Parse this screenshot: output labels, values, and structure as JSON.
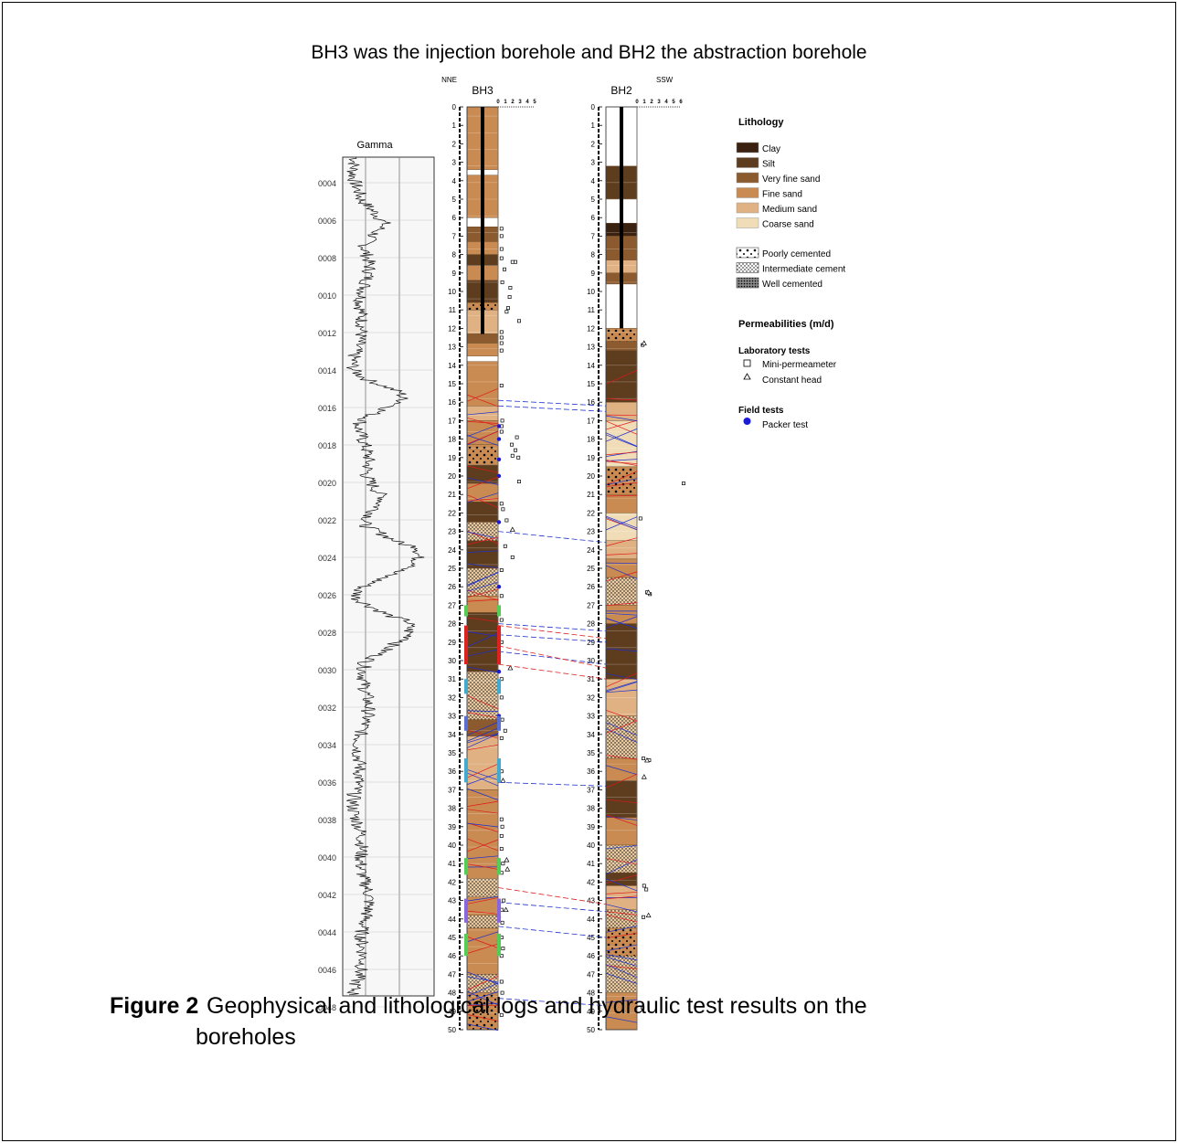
{
  "title": "BH3 was the injection borehole and BH2 the abstraction borehole",
  "caption": {
    "label": "Figure 2",
    "line1": "Geophysical and lithological logs and hydraulic test results on the",
    "line2": "boreholes"
  },
  "gamma": {
    "title": "Gamma",
    "depth_labels": [
      "0004",
      "0006",
      "0008",
      "0010",
      "0012",
      "0014",
      "0016",
      "0018",
      "0020",
      "0022",
      "0024",
      "0026",
      "0028",
      "0030",
      "0032",
      "0034",
      "0036",
      "0038",
      "0040",
      "0042",
      "0044",
      "0046",
      "0048"
    ]
  },
  "bh3": {
    "name": "BH3",
    "direction": "NNE",
    "scale_labels": [
      "0",
      "1",
      "2",
      "3",
      "4",
      "5"
    ],
    "layers": [
      [
        0,
        3.4,
        "fine"
      ],
      [
        3.4,
        3.7,
        "white"
      ],
      [
        3.7,
        6,
        "fine"
      ],
      [
        6,
        6.5,
        "white"
      ],
      [
        6.5,
        7.3,
        "vf"
      ],
      [
        7.3,
        8.0,
        "fine"
      ],
      [
        8.0,
        8.6,
        "silt"
      ],
      [
        8.6,
        9.4,
        "fine"
      ],
      [
        9.4,
        10.6,
        "silt"
      ],
      [
        10.6,
        11.0,
        "poor"
      ],
      [
        11.0,
        12.3,
        "medium"
      ],
      [
        12.3,
        12.8,
        "vf"
      ],
      [
        12.8,
        13.5,
        "fine"
      ],
      [
        13.5,
        13.8,
        "white"
      ],
      [
        13.8,
        16.2,
        "fine"
      ],
      [
        16.2,
        17.0,
        "medium"
      ],
      [
        17.0,
        18.3,
        "fine"
      ],
      [
        18.3,
        19.4,
        "poor"
      ],
      [
        19.4,
        20.4,
        "silt"
      ],
      [
        20.4,
        21.4,
        "fine"
      ],
      [
        21.4,
        22.5,
        "silt"
      ],
      [
        22.5,
        23.5,
        "inter"
      ],
      [
        23.5,
        25,
        "silt"
      ],
      [
        25,
        26.5,
        "inter"
      ],
      [
        26.5,
        27.4,
        "fine"
      ],
      [
        27.4,
        30.6,
        "silt"
      ],
      [
        30.6,
        33.2,
        "inter"
      ],
      [
        33.2,
        34.1,
        "vf"
      ],
      [
        34.1,
        37,
        "medium"
      ],
      [
        37,
        41.8,
        "fine"
      ],
      [
        41.8,
        42.8,
        "inter"
      ],
      [
        42.8,
        43.8,
        "fine"
      ],
      [
        43.8,
        44.5,
        "inter"
      ],
      [
        44.5,
        47,
        "fine"
      ],
      [
        47,
        48,
        "inter"
      ],
      [
        48,
        50,
        "poor"
      ]
    ],
    "mini_permeameter": [
      [
        6.6,
        0.1
      ],
      [
        7.0,
        0.1
      ],
      [
        7.7,
        0.1
      ],
      [
        8.2,
        0.1
      ],
      [
        8.4,
        1.6
      ],
      [
        8.4,
        2.0
      ],
      [
        8.8,
        0.5
      ],
      [
        9.5,
        0.2
      ],
      [
        9.8,
        1.3
      ],
      [
        10.3,
        1.2
      ],
      [
        10.9,
        1.0
      ],
      [
        11.1,
        0.8
      ],
      [
        11.6,
        2.5
      ],
      [
        12.2,
        0.1
      ],
      [
        12.5,
        0.1
      ],
      [
        12.8,
        0.1
      ],
      [
        13.2,
        0.1
      ],
      [
        15.1,
        0.1
      ],
      [
        17.0,
        0.2
      ],
      [
        17.3,
        0.1
      ],
      [
        17.6,
        0.1
      ],
      [
        17.9,
        2.2
      ],
      [
        18.3,
        1.5
      ],
      [
        18.6,
        2.0
      ],
      [
        18.9,
        1.6
      ],
      [
        19.0,
        2.4
      ],
      [
        20.3,
        2.5
      ],
      [
        21.5,
        0.1
      ],
      [
        21.8,
        0.3
      ],
      [
        22.4,
        0.8
      ],
      [
        23.8,
        0.6
      ],
      [
        24.4,
        1.6
      ],
      [
        25.1,
        0.1
      ],
      [
        26.5,
        0.1
      ],
      [
        27.8,
        0.1
      ],
      [
        29.0,
        0.1
      ],
      [
        31.0,
        0.1
      ],
      [
        32.0,
        0.1
      ],
      [
        33.2,
        0.2
      ],
      [
        33.8,
        0.6
      ],
      [
        34.2,
        0.1
      ],
      [
        36.0,
        0.1
      ],
      [
        38.6,
        0.1
      ],
      [
        39.0,
        0.2
      ],
      [
        39.5,
        0.1
      ],
      [
        40.2,
        0.1
      ],
      [
        41.0,
        0.3
      ],
      [
        41.5,
        0.1
      ],
      [
        43.0,
        0.4
      ],
      [
        43.5,
        0.1
      ],
      [
        44.2,
        0.2
      ],
      [
        45.0,
        0.1
      ],
      [
        45.6,
        0.3
      ],
      [
        46.0,
        0.1
      ],
      [
        47.4,
        0.1
      ],
      [
        48.0,
        0.2
      ],
      [
        49.2,
        0.1
      ]
    ],
    "constant_head": [
      [
        22.9,
        1.6
      ],
      [
        30.4,
        1.3
      ],
      [
        36.5,
        0.3
      ],
      [
        40.8,
        0.8
      ],
      [
        41.3,
        0.9
      ],
      [
        43.5,
        0.7
      ]
    ],
    "packer": [
      [
        17.3,
        0
      ],
      [
        18.0,
        0
      ],
      [
        19.1,
        0
      ],
      [
        20.0,
        0
      ],
      [
        22.5,
        0
      ],
      [
        26.0,
        0
      ],
      [
        28.5,
        0
      ],
      [
        30.6,
        0
      ],
      [
        33.0,
        0
      ],
      [
        36.3,
        0
      ],
      [
        41.0,
        0
      ],
      [
        43.9,
        0
      ],
      [
        45.2,
        0
      ]
    ]
  },
  "bh2": {
    "name": "BH2",
    "direction": "SSW",
    "scale_labels": [
      "0",
      "1",
      "2",
      "3",
      "4",
      "5",
      "6"
    ],
    "layers": [
      [
        0,
        3.2,
        "white"
      ],
      [
        3.2,
        5,
        "silt"
      ],
      [
        5,
        6.3,
        "white"
      ],
      [
        6.3,
        7.0,
        "clay"
      ],
      [
        7.0,
        8.3,
        "vf"
      ],
      [
        8.3,
        9.0,
        "medium"
      ],
      [
        9.0,
        9.6,
        "vf"
      ],
      [
        9.6,
        12,
        "white"
      ],
      [
        12,
        12.7,
        "poor"
      ],
      [
        12.7,
        13.2,
        "vf"
      ],
      [
        13.2,
        16,
        "silt"
      ],
      [
        16,
        17,
        "medium"
      ],
      [
        17,
        19.5,
        "coarse"
      ],
      [
        19.5,
        21,
        "poor"
      ],
      [
        21,
        22,
        "fine"
      ],
      [
        22,
        23.5,
        "coarse"
      ],
      [
        23.5,
        24.5,
        "medium"
      ],
      [
        24.5,
        25.5,
        "fine"
      ],
      [
        25.5,
        27,
        "inter"
      ],
      [
        27,
        28,
        "fine"
      ],
      [
        28,
        31,
        "silt"
      ],
      [
        31,
        33,
        "medium"
      ],
      [
        33,
        35.3,
        "inter"
      ],
      [
        35.3,
        36.5,
        "fine"
      ],
      [
        36.5,
        38.5,
        "silt"
      ],
      [
        38.5,
        40,
        "fine"
      ],
      [
        40,
        41.5,
        "inter"
      ],
      [
        41.5,
        42.2,
        "silt"
      ],
      [
        42.2,
        43.5,
        "medium"
      ],
      [
        43.5,
        44.5,
        "inter"
      ],
      [
        44.5,
        46,
        "poor"
      ],
      [
        46,
        48,
        "inter"
      ],
      [
        48,
        50,
        "fine"
      ]
    ],
    "mini_permeameter": [
      [
        12.9,
        0.4
      ],
      [
        20.4,
        6.0
      ],
      [
        22.3,
        0.1
      ],
      [
        26.3,
        1.0
      ],
      [
        26.4,
        1.4
      ],
      [
        35.3,
        0.5
      ],
      [
        35.4,
        1.3
      ],
      [
        42.2,
        0.6
      ],
      [
        42.4,
        0.9
      ],
      [
        43.9,
        0.5
      ],
      [
        48.8,
        0.4
      ]
    ],
    "constant_head": [
      [
        12.8,
        0.6
      ],
      [
        26.3,
        1.2
      ],
      [
        35.4,
        1.0
      ],
      [
        36.3,
        0.6
      ],
      [
        43.8,
        1.2
      ]
    ]
  },
  "legend": {
    "lithology_title": "Lithology",
    "lithology": [
      {
        "label": "Clay",
        "color": "#3b2210"
      },
      {
        "label": "Silt",
        "color": "#5e3c1e"
      },
      {
        "label": "Very fine sand",
        "color": "#8b5a2f"
      },
      {
        "label": "Fine sand",
        "color": "#c98b52"
      },
      {
        "label": "Medium sand",
        "color": "#e0b283"
      },
      {
        "label": "Coarse sand",
        "color": "#f0dcb6"
      }
    ],
    "cement": [
      {
        "label": "Poorly cemented"
      },
      {
        "label": "Intermediate cement"
      },
      {
        "label": "Well cemented"
      }
    ],
    "permeability_title": "Permeabilities (m/d)",
    "lab_title": "Laboratory tests",
    "lab": [
      {
        "label": "Mini-permeameter",
        "icon": "square"
      },
      {
        "label": "Constant head",
        "icon": "triangle"
      }
    ],
    "field_title": "Field tests",
    "field": [
      {
        "label": "Packer test",
        "icon": "circle",
        "color": "#1b1bd6"
      }
    ]
  }
}
